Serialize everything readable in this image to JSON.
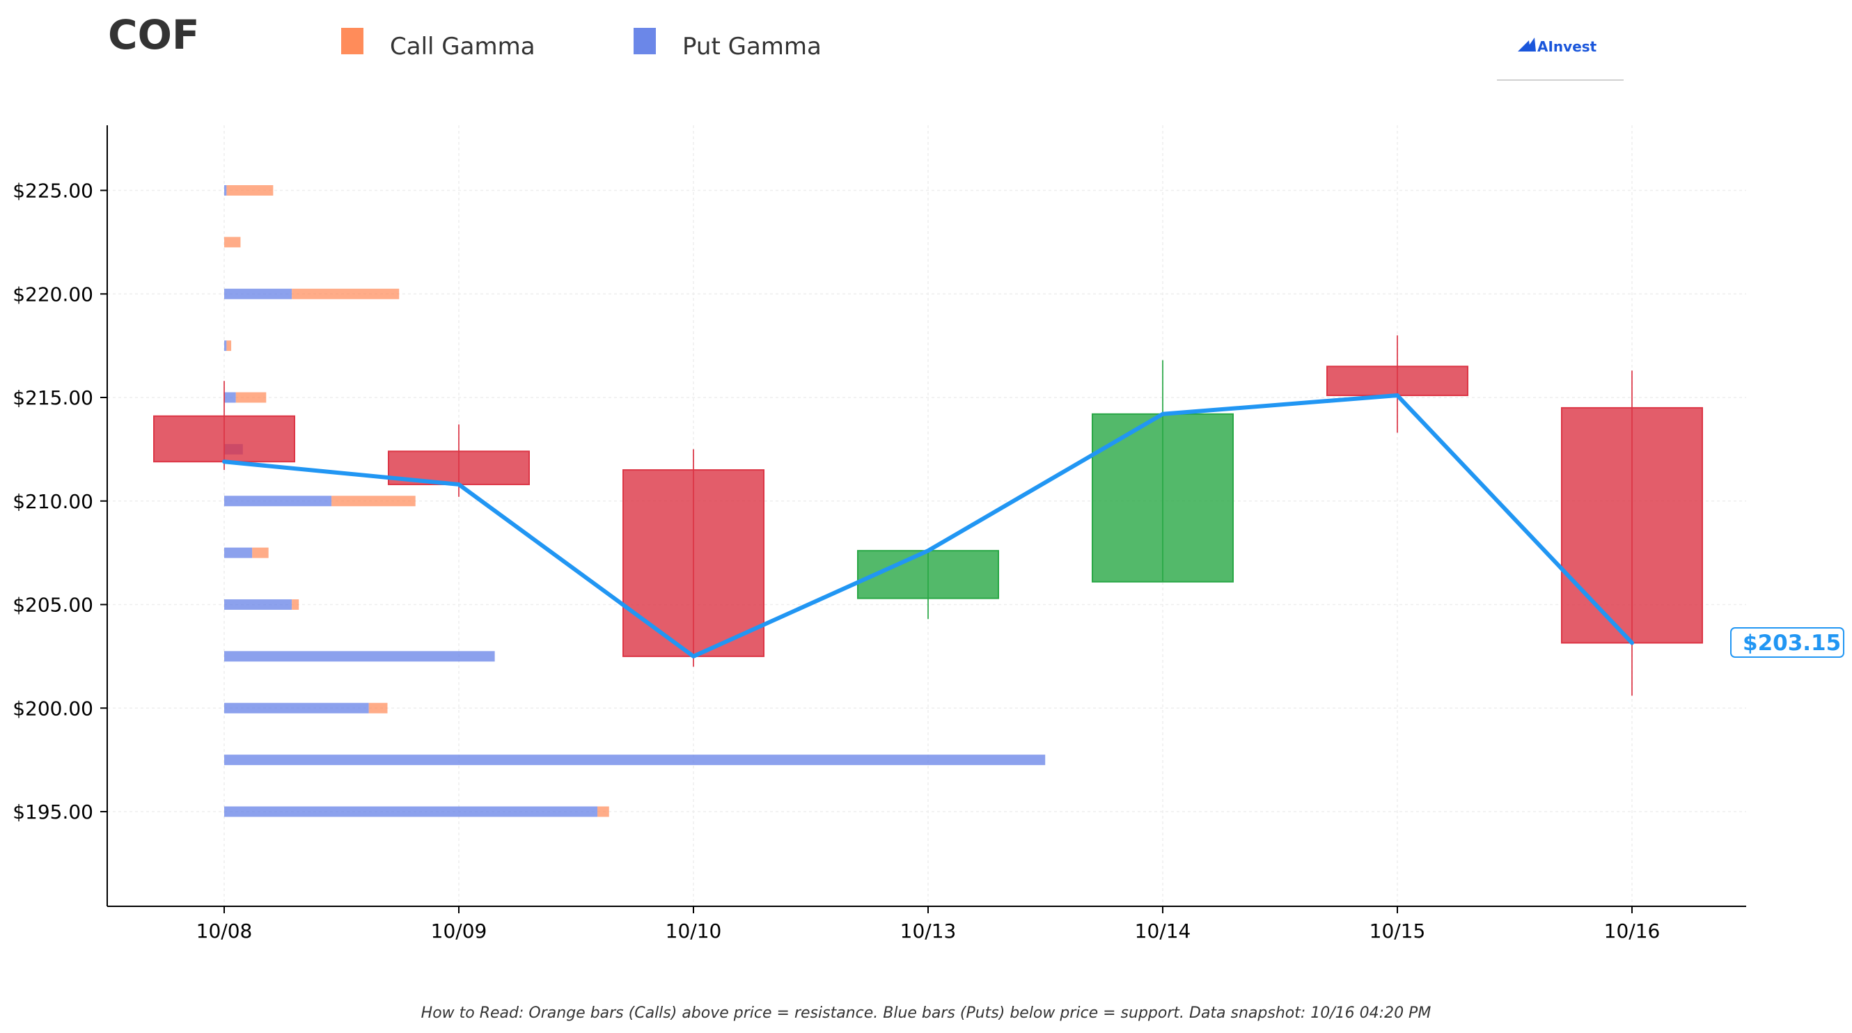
{
  "ticker": "COF",
  "brand": "AInvest",
  "legend": {
    "call_label": "Call Gamma",
    "put_label": "Put Gamma"
  },
  "footer": "How to Read: Orange bars (Calls) above price = resistance. Blue bars (Puts) below price = support. Data snapshot: 10/16 04:20 PM",
  "colors": {
    "call": "#ff8c5a",
    "put": "#6b87e8",
    "bear": "#dc3545",
    "bull": "#28a745",
    "line": "#2196f3"
  },
  "chart_data": {
    "type": "candlestick",
    "ylim": [
      190.0,
      228.0
    ],
    "y_ticks": [
      195,
      200,
      205,
      210,
      215,
      220,
      225
    ],
    "y_tick_labels": [
      "$195.00",
      "$200.00",
      "$205.00",
      "$210.00",
      "$215.00",
      "$220.00",
      "$225.00"
    ],
    "categories": [
      "10/08",
      "10/09",
      "10/10",
      "10/13",
      "10/14",
      "10/15",
      "10/16"
    ],
    "candles": [
      {
        "date": "10/08",
        "open": 214.1,
        "high": 215.8,
        "low": 211.5,
        "close": 211.9
      },
      {
        "date": "10/09",
        "open": 212.4,
        "high": 213.7,
        "low": 210.2,
        "close": 210.8
      },
      {
        "date": "10/10",
        "open": 211.5,
        "high": 212.5,
        "low": 202.0,
        "close": 202.5
      },
      {
        "date": "10/13",
        "open": 205.3,
        "high": 207.6,
        "low": 204.3,
        "close": 207.6
      },
      {
        "date": "10/14",
        "open": 206.1,
        "high": 216.8,
        "low": 206.1,
        "close": 214.2
      },
      {
        "date": "10/15",
        "open": 216.5,
        "high": 218.0,
        "low": 213.3,
        "close": 215.1
      },
      {
        "date": "10/16",
        "open": 214.5,
        "high": 216.3,
        "low": 200.6,
        "close": 203.15
      }
    ],
    "close_line": [
      211.9,
      210.8,
      202.5,
      207.6,
      214.2,
      215.1,
      203.15
    ],
    "last_price_label": "$203.15",
    "gamma_strikes": [
      {
        "strike": 225.0,
        "put": 0.01,
        "call": 0.2
      },
      {
        "strike": 222.5,
        "put": 0.0,
        "call": 0.07
      },
      {
        "strike": 220.0,
        "put": 0.29,
        "call": 0.46
      },
      {
        "strike": 217.5,
        "put": 0.01,
        "call": 0.02
      },
      {
        "strike": 215.0,
        "put": 0.05,
        "call": 0.13
      },
      {
        "strike": 212.5,
        "put": 0.08,
        "call": 0.0
      },
      {
        "strike": 210.0,
        "put": 0.46,
        "call": 0.36
      },
      {
        "strike": 207.5,
        "put": 0.12,
        "call": 0.07
      },
      {
        "strike": 205.0,
        "put": 0.29,
        "call": 0.03
      },
      {
        "strike": 202.5,
        "put": 1.16,
        "call": 0.0
      },
      {
        "strike": 200.0,
        "put": 0.62,
        "call": 0.08
      },
      {
        "strike": 197.5,
        "put": 3.52,
        "call": 0.0
      },
      {
        "strike": 195.0,
        "put": 1.6,
        "call": 0.05
      }
    ],
    "grid": true,
    "legend_position": "top-left"
  }
}
